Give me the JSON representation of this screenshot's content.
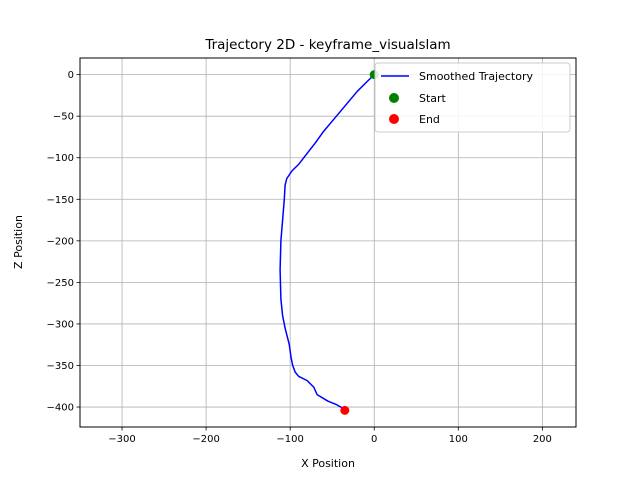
{
  "chart_data": {
    "type": "line",
    "title": "Trajectory 2D - keyframe_visualslam",
    "xlabel": "X Position",
    "ylabel": "Z Position",
    "xlim": [
      -350,
      240
    ],
    "ylim": [
      -424,
      20
    ],
    "xticks": [
      -300,
      -200,
      -100,
      0,
      100,
      200
    ],
    "yticks": [
      0,
      -50,
      -100,
      -150,
      -200,
      -250,
      -300,
      -350,
      -400
    ],
    "grid": true,
    "legend_position": "top-right",
    "series": [
      {
        "name": "Smoothed Trajectory",
        "color": "#0000ff",
        "x": [
          0,
          -10,
          -20,
          -30,
          -40,
          -50,
          -60,
          -70,
          -80,
          -90,
          -98,
          -104,
          -106,
          -107,
          -109,
          -111,
          -112,
          -111,
          -109,
          -106,
          -101,
          -99,
          -97,
          -94,
          -90,
          -80,
          -72,
          -68,
          -55,
          -45,
          -38,
          -35
        ],
        "y": [
          0,
          -10,
          -20,
          -32,
          -44,
          -56,
          -68,
          -82,
          -95,
          -108,
          -116,
          -125,
          -133,
          -150,
          -175,
          -200,
          -235,
          -270,
          -290,
          -305,
          -325,
          -340,
          -350,
          -358,
          -363,
          -368,
          -376,
          -385,
          -393,
          -397,
          -401,
          -404
        ]
      }
    ],
    "markers": [
      {
        "name": "Start",
        "x": 0,
        "y": 0,
        "color": "#008000"
      },
      {
        "name": "End",
        "x": -35,
        "y": -404,
        "color": "#ff0000"
      }
    ]
  }
}
